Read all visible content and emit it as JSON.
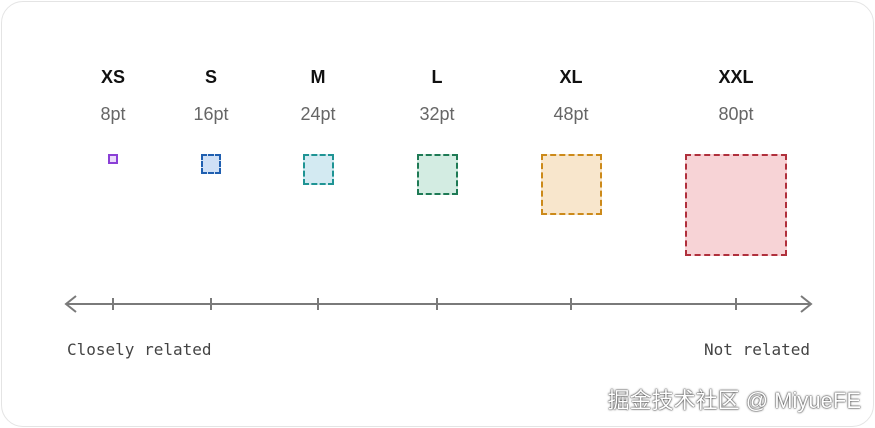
{
  "sizes": [
    {
      "label": "XS",
      "value": "8pt",
      "pt": 8,
      "border": "#8a3fd6",
      "fill": "#ead9fb"
    },
    {
      "label": "S",
      "value": "16pt",
      "pt": 16,
      "border": "#1f5fb0",
      "fill": "#cfe0f6"
    },
    {
      "label": "M",
      "value": "24pt",
      "pt": 24,
      "border": "#1f9494",
      "fill": "#d3eaf2"
    },
    {
      "label": "L",
      "value": "32pt",
      "pt": 32,
      "border": "#1e7a55",
      "fill": "#d3ece2"
    },
    {
      "label": "XL",
      "value": "48pt",
      "pt": 48,
      "border": "#cc8a1a",
      "fill": "#f8e6cc"
    },
    {
      "label": "XXL",
      "value": "80pt",
      "pt": 80,
      "border": "#b0303c",
      "fill": "#f7d3d6"
    }
  ],
  "axis": {
    "left_label": "Closely related",
    "right_label": "Not related",
    "color": "#7a7a7a"
  },
  "watermark": "掘金技术社区 @ MiyueFE"
}
